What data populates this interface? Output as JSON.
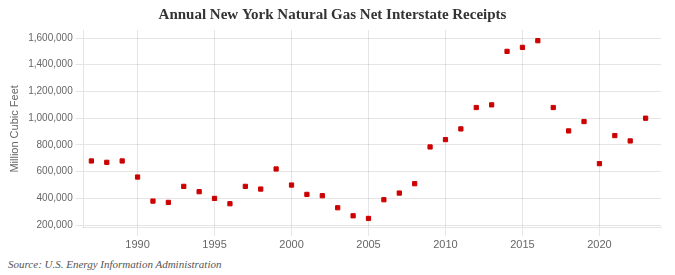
{
  "chart_data": {
    "type": "scatter",
    "title": "Annual New York Natural Gas Net Interstate Receipts",
    "y_label": "Million Cubic Feet",
    "annotations": [
      "Source: U.S. Energy Information Administration"
    ],
    "x": [
      1987,
      1988,
      1989,
      1990,
      1991,
      1992,
      1993,
      1994,
      1995,
      1996,
      1997,
      1998,
      1999,
      2000,
      2001,
      2002,
      2003,
      2004,
      2005,
      2006,
      2007,
      2008,
      2009,
      2010,
      2011,
      2012,
      2013,
      2014,
      2015,
      2016,
      2017,
      2018,
      2019,
      2020,
      2021,
      2022,
      2023
    ],
    "values": [
      680000,
      670000,
      680000,
      560000,
      380000,
      370000,
      490000,
      450000,
      400000,
      360000,
      490000,
      470000,
      620000,
      500000,
      430000,
      420000,
      330000,
      270000,
      250000,
      390000,
      440000,
      510000,
      785000,
      840000,
      920000,
      1080000,
      1100000,
      1500000,
      1530000,
      1580000,
      1080000,
      905000,
      975000,
      660000,
      870000,
      830000,
      1000000
    ],
    "color": "#cc0000",
    "marker": "square",
    "xlim": [
      1986.5,
      2024
    ],
    "ylim": [
      180000,
      1660000
    ],
    "xticks": [
      1990,
      1995,
      2000,
      2005,
      2010,
      2015,
      2020
    ],
    "yticks": [
      {
        "value": 200000,
        "label": "200,000"
      },
      {
        "value": 400000,
        "label": "400,000"
      },
      {
        "value": 600000,
        "label": "600,000"
      },
      {
        "value": 800000,
        "label": "800,000"
      },
      {
        "value": 1000000,
        "label": "1,000,000"
      },
      {
        "value": 1200000,
        "label": "1,200,000"
      },
      {
        "value": 1400000,
        "label": "1,400,000"
      },
      {
        "value": 1600000,
        "label": "1,600,000"
      }
    ],
    "grid": true
  }
}
